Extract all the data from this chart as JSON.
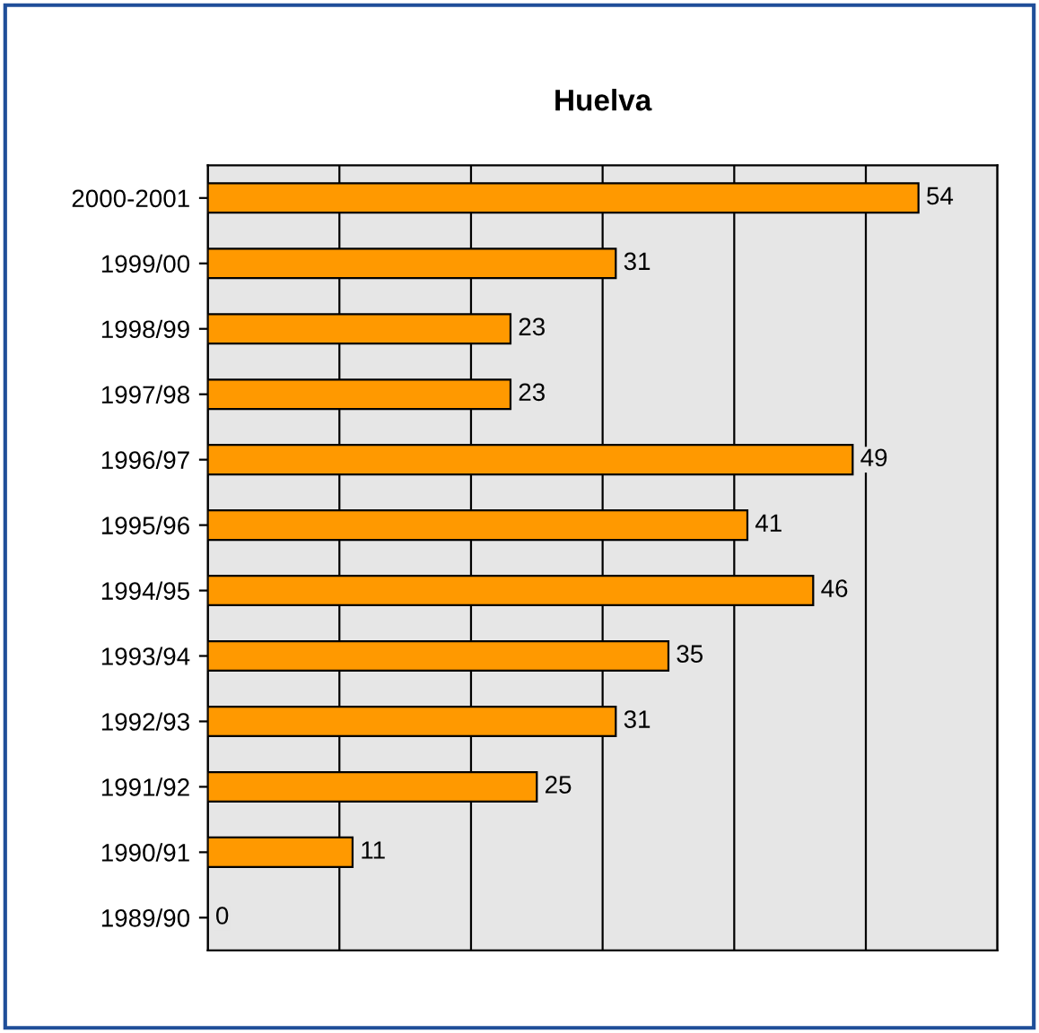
{
  "chart_data": {
    "type": "bar",
    "orientation": "horizontal",
    "title": "Huelva",
    "categories": [
      "2000-2001",
      "1999/00",
      "1998/99",
      "1997/98",
      "1996/97",
      "1995/96",
      "1994/95",
      "1993/94",
      "1992/93",
      "1991/92",
      "1990/91",
      "1989/90"
    ],
    "values": [
      54,
      31,
      23,
      23,
      49,
      41,
      46,
      35,
      31,
      25,
      11,
      0
    ],
    "color": "#ff9900",
    "xlim": [
      0,
      60
    ],
    "xticks": [
      {
        "value": 0,
        "label": null
      },
      {
        "value": 10,
        "label": null
      },
      {
        "value": 20,
        "label": null
      },
      {
        "value": 30,
        "label": null
      },
      {
        "value": 40,
        "label": null
      },
      {
        "value": 50,
        "label": null
      },
      {
        "value": 60,
        "label": null
      }
    ],
    "grid": "x",
    "tick_labels": "y",
    "data_labels": true
  }
}
